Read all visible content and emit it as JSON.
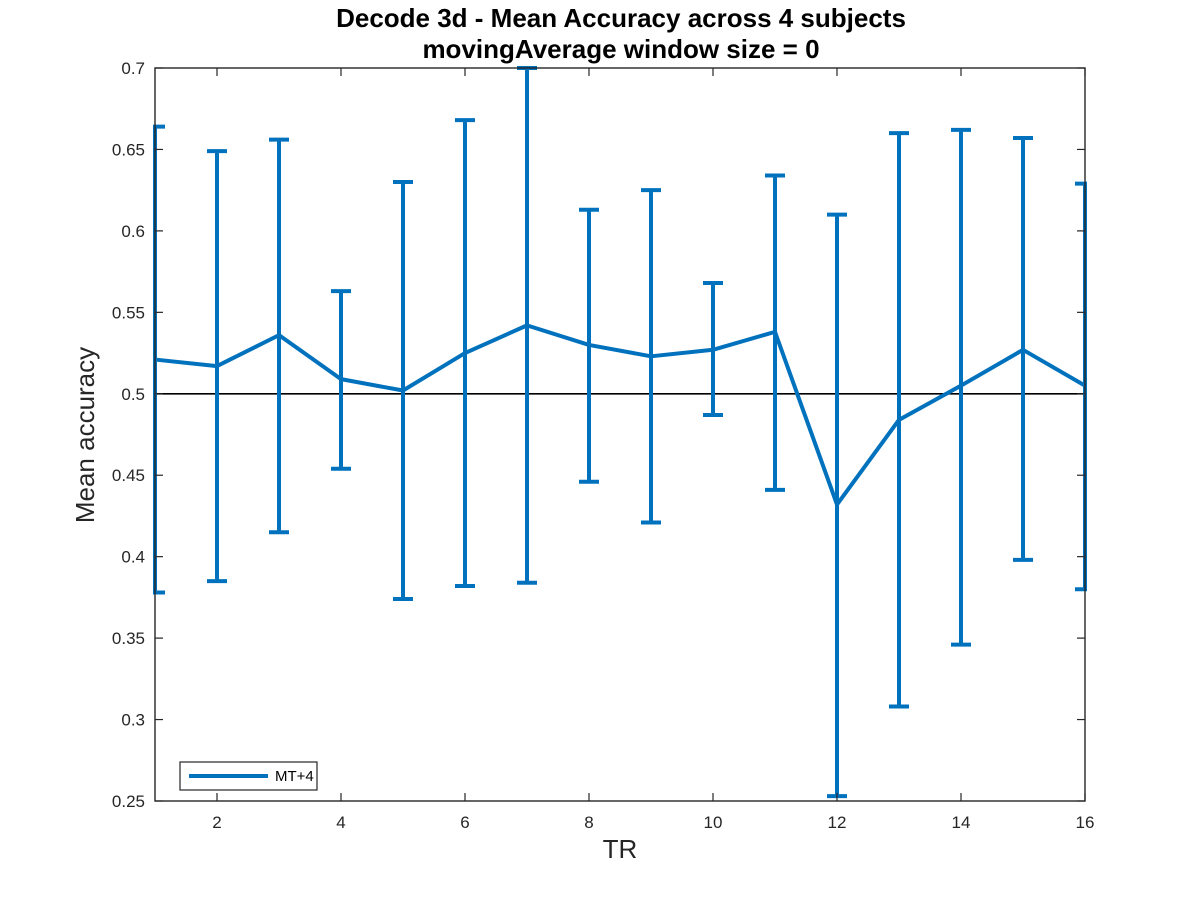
{
  "chart_data": {
    "type": "line",
    "title": "Decode 3d - Mean Accuracy across 4 subjects",
    "subtitle": "movingAverage window size = 0",
    "xlabel": "TR",
    "ylabel": "Mean accuracy",
    "xlim": [
      1,
      16
    ],
    "ylim": [
      0.25,
      0.7
    ],
    "xticks": [
      2,
      4,
      6,
      8,
      10,
      12,
      14,
      16
    ],
    "xtick_labels": [
      "2",
      "4",
      "6",
      "8",
      "10",
      "12",
      "14",
      "16"
    ],
    "yticks": [
      0.25,
      0.3,
      0.35,
      0.4,
      0.45,
      0.5,
      0.55,
      0.6,
      0.65,
      0.7
    ],
    "ytick_labels": [
      "0.25",
      "0.3",
      "0.35",
      "0.4",
      "0.45",
      "0.5",
      "0.55",
      "0.6",
      "0.65",
      "0.7"
    ],
    "reference_line": 0.5,
    "grid": false,
    "legend_position": "bottom-left",
    "series": [
      {
        "name": "MT+4",
        "color": "#0072BD",
        "x": [
          1,
          2,
          3,
          4,
          5,
          6,
          7,
          8,
          9,
          10,
          11,
          12,
          13,
          14,
          15,
          16
        ],
        "y": [
          0.521,
          0.517,
          0.536,
          0.509,
          0.502,
          0.525,
          0.542,
          0.53,
          0.523,
          0.527,
          0.538,
          0.432,
          0.484,
          0.505,
          0.527,
          0.505
        ],
        "err_lower": [
          0.378,
          0.385,
          0.415,
          0.454,
          0.374,
          0.382,
          0.384,
          0.446,
          0.421,
          0.487,
          0.441,
          0.253,
          0.308,
          0.346,
          0.398,
          0.38
        ],
        "err_upper": [
          0.664,
          0.649,
          0.656,
          0.563,
          0.63,
          0.668,
          0.7,
          0.613,
          0.625,
          0.568,
          0.634,
          0.61,
          0.66,
          0.662,
          0.657,
          0.629
        ]
      }
    ]
  }
}
